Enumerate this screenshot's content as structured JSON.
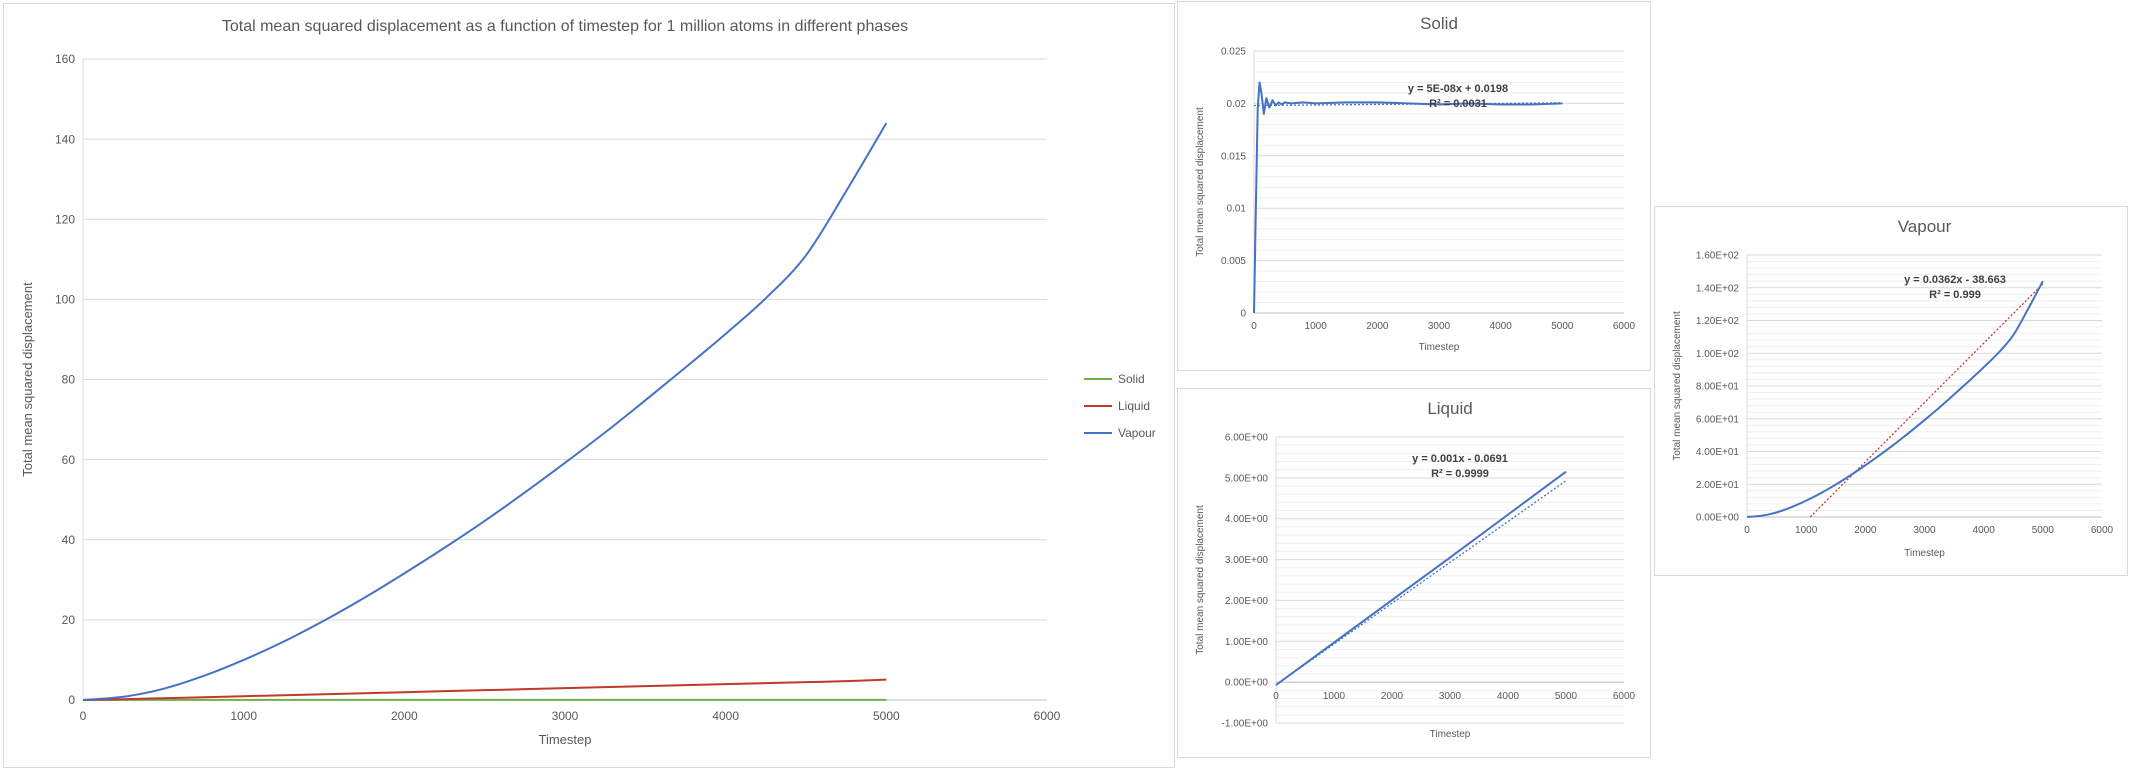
{
  "chart_data": [
    {
      "id": "main",
      "type": "line",
      "title": "Total mean squared displacement  as a function of timestep  for 1 million  atoms in different phases",
      "xlabel": "Timestep",
      "ylabel": "Total mean squared displacement",
      "xlim": [
        0,
        6000
      ],
      "ylim": [
        0,
        160
      ],
      "xticks": [
        "0",
        "1000",
        "2000",
        "3000",
        "4000",
        "5000",
        "6000"
      ],
      "yticks": [
        "0",
        "20",
        "40",
        "60",
        "80",
        "100",
        "120",
        "140",
        "160"
      ],
      "grid": "horizontal",
      "legend_position": "right",
      "x": [
        0,
        250,
        500,
        750,
        1000,
        1250,
        1500,
        1750,
        2000,
        2250,
        2500,
        2750,
        3000,
        3250,
        3500,
        3750,
        4000,
        4250,
        4500,
        4750,
        5000
      ],
      "series": [
        {
          "name": "Solid",
          "color": "#70ad47",
          "values": [
            0,
            0.02,
            0.02,
            0.02,
            0.02,
            0.02,
            0.02,
            0.02,
            0.02,
            0.02,
            0.02,
            0.02,
            0.02,
            0.02,
            0.02,
            0.02,
            0.02,
            0.02,
            0.02,
            0.02,
            0.02
          ]
        },
        {
          "name": "Liquid",
          "color": "#c0392b",
          "values": [
            0,
            0.2,
            0.45,
            0.7,
            0.95,
            1.2,
            1.45,
            1.7,
            1.95,
            2.2,
            2.45,
            2.7,
            2.95,
            3.2,
            3.45,
            3.7,
            3.95,
            4.2,
            4.45,
            4.7,
            5.1
          ]
        },
        {
          "name": "Vapour",
          "color": "#4472c4",
          "values": [
            0,
            0.8,
            2.8,
            6.0,
            10.0,
            14.6,
            19.8,
            25.5,
            31.6,
            38.0,
            44.7,
            51.8,
            59.2,
            66.8,
            74.8,
            83.0,
            91.4,
            100.3,
            111.0,
            127.0,
            144.0
          ]
        }
      ]
    },
    {
      "id": "solid",
      "type": "line",
      "title": "Solid",
      "xlabel": "Timestep",
      "ylabel": "Total mean squared displacement",
      "xlim": [
        0,
        6000
      ],
      "ylim": [
        0,
        0.025
      ],
      "xticks": [
        "0",
        "1000",
        "2000",
        "3000",
        "4000",
        "5000",
        "6000"
      ],
      "yticks": [
        "0",
        "0.005",
        "0.01",
        "0.015",
        "0.02",
        "0.025"
      ],
      "grid": "horizontal",
      "trendline": {
        "type": "linear",
        "equation": "y = 5E-08x + 0.0198",
        "r2": "R² = 0.0031"
      },
      "series": [
        {
          "color": "#4472c4",
          "x": [
            0,
            30,
            60,
            90,
            120,
            160,
            200,
            250,
            300,
            350,
            400,
            450,
            500,
            600,
            800,
            1000,
            1500,
            2000,
            2500,
            3000,
            3500,
            4000,
            4500,
            5000
          ],
          "values": [
            0,
            0.01,
            0.0195,
            0.022,
            0.021,
            0.019,
            0.0205,
            0.0196,
            0.0203,
            0.0198,
            0.0201,
            0.0199,
            0.0201,
            0.02,
            0.0201,
            0.02,
            0.0201,
            0.0201,
            0.02,
            0.0199,
            0.02,
            0.0199,
            0.0199,
            0.02
          ]
        }
      ]
    },
    {
      "id": "liquid",
      "type": "line",
      "title": "Liquid",
      "xlabel": "Timestep",
      "ylabel": "Total mean squared displacement",
      "xlim": [
        0,
        6000
      ],
      "ylim": [
        -1,
        6
      ],
      "xticks": [
        "0",
        "1000",
        "2000",
        "3000",
        "4000",
        "5000",
        "6000"
      ],
      "yticks": [
        "-1.00E+00",
        "0.00E+00",
        "1.00E+00",
        "2.00E+00",
        "3.00E+00",
        "4.00E+00",
        "5.00E+00",
        "6.00E+00"
      ],
      "grid": "horizontal",
      "trendline": {
        "type": "linear",
        "equation": "y = 0.001x - 0.0691",
        "r2": "R² = 0.9999"
      },
      "series": [
        {
          "color": "#4472c4",
          "x": [
            0,
            1000,
            2000,
            3000,
            4000,
            5000
          ],
          "values": [
            -0.07,
            0.97,
            2.01,
            3.05,
            4.1,
            5.15
          ]
        }
      ]
    },
    {
      "id": "vapour",
      "type": "line",
      "title": "Vapour",
      "xlabel": "Timestep",
      "ylabel": "Total mean squared displacement",
      "xlim": [
        0,
        6000
      ],
      "ylim": [
        0,
        160
      ],
      "xticks": [
        "0",
        "1000",
        "2000",
        "3000",
        "4000",
        "5000",
        "6000"
      ],
      "yticks": [
        "0.00E+00",
        "2.00E+01",
        "4.00E+01",
        "6.00E+01",
        "8.00E+01",
        "1.00E+02",
        "1.20E+02",
        "1.40E+02",
        "1.60E+02"
      ],
      "grid": "horizontal",
      "trendline": {
        "type": "linear",
        "equation": "y = 0.0362x - 38.663",
        "r2": "R² = 0.999",
        "color": "#c0392b"
      },
      "series": [
        {
          "color": "#4472c4",
          "x": [
            0,
            250,
            500,
            750,
            1000,
            1250,
            1500,
            1750,
            2000,
            2250,
            2500,
            2750,
            3000,
            3250,
            3500,
            3750,
            4000,
            4250,
            4500,
            4750,
            5000
          ],
          "values": [
            0,
            0.8,
            2.8,
            6.0,
            10.0,
            14.6,
            19.8,
            25.5,
            31.6,
            38.0,
            44.7,
            51.8,
            59.2,
            66.8,
            74.8,
            83.0,
            91.4,
            100.3,
            111.0,
            127.0,
            144.0
          ]
        }
      ]
    }
  ]
}
